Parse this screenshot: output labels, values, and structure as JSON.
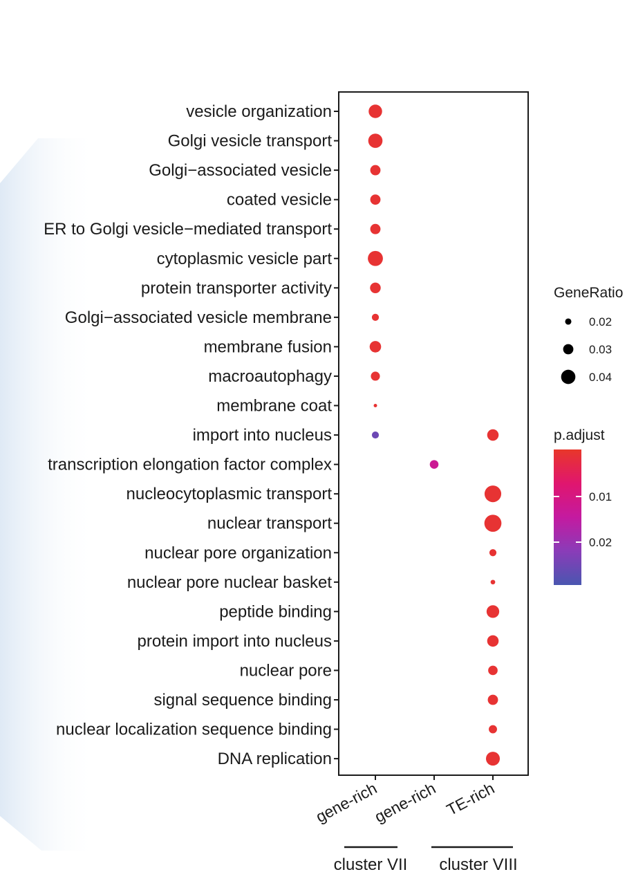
{
  "chart_data": {
    "type": "dotplot",
    "terms": [
      "vesicle organization",
      "Golgi vesicle transport",
      "Golgi−associated vesicle",
      "coated vesicle",
      "ER to Golgi vesicle−mediated transport",
      "cytoplasmic vesicle part",
      "protein transporter activity",
      "Golgi−associated vesicle membrane",
      "membrane fusion",
      "macroautophagy",
      "membrane coat",
      "import into nucleus",
      "transcription elongation factor complex",
      "nucleocytoplasmic transport",
      "nuclear transport",
      "nuclear pore organization",
      "nuclear pore nuclear basket",
      "peptide binding",
      "protein import into nucleus",
      "nuclear pore",
      "signal sequence binding",
      "nuclear localization sequence binding",
      "DNA replication"
    ],
    "categories": [
      "gene-rich",
      "gene-rich",
      "TE-rich"
    ],
    "groups": [
      {
        "label": "cluster VII",
        "categories": [
          0
        ]
      },
      {
        "label": "cluster VIII",
        "categories": [
          1,
          2
        ]
      }
    ],
    "points": [
      {
        "term": 0,
        "cat": 0,
        "gene_ratio": 0.038,
        "p_adjust": 0.001
      },
      {
        "term": 1,
        "cat": 0,
        "gene_ratio": 0.04,
        "p_adjust": 0.001
      },
      {
        "term": 2,
        "cat": 0,
        "gene_ratio": 0.03,
        "p_adjust": 0.001
      },
      {
        "term": 3,
        "cat": 0,
        "gene_ratio": 0.03,
        "p_adjust": 0.001
      },
      {
        "term": 4,
        "cat": 0,
        "gene_ratio": 0.03,
        "p_adjust": 0.001
      },
      {
        "term": 5,
        "cat": 0,
        "gene_ratio": 0.042,
        "p_adjust": 0.001
      },
      {
        "term": 6,
        "cat": 0,
        "gene_ratio": 0.031,
        "p_adjust": 0.001
      },
      {
        "term": 7,
        "cat": 0,
        "gene_ratio": 0.022,
        "p_adjust": 0.001
      },
      {
        "term": 8,
        "cat": 0,
        "gene_ratio": 0.033,
        "p_adjust": 0.001
      },
      {
        "term": 9,
        "cat": 0,
        "gene_ratio": 0.027,
        "p_adjust": 0.001
      },
      {
        "term": 10,
        "cat": 0,
        "gene_ratio": 0.013,
        "p_adjust": 0.001
      },
      {
        "term": 11,
        "cat": 0,
        "gene_ratio": 0.022,
        "p_adjust": 0.026
      },
      {
        "term": 11,
        "cat": 2,
        "gene_ratio": 0.033,
        "p_adjust": 0.001
      },
      {
        "term": 12,
        "cat": 1,
        "gene_ratio": 0.026,
        "p_adjust": 0.013
      },
      {
        "term": 13,
        "cat": 2,
        "gene_ratio": 0.046,
        "p_adjust": 0.001
      },
      {
        "term": 14,
        "cat": 2,
        "gene_ratio": 0.047,
        "p_adjust": 0.001
      },
      {
        "term": 15,
        "cat": 2,
        "gene_ratio": 0.022,
        "p_adjust": 0.001
      },
      {
        "term": 16,
        "cat": 2,
        "gene_ratio": 0.016,
        "p_adjust": 0.001
      },
      {
        "term": 17,
        "cat": 2,
        "gene_ratio": 0.036,
        "p_adjust": 0.001
      },
      {
        "term": 18,
        "cat": 2,
        "gene_ratio": 0.033,
        "p_adjust": 0.001
      },
      {
        "term": 19,
        "cat": 2,
        "gene_ratio": 0.028,
        "p_adjust": 0.001
      },
      {
        "term": 20,
        "cat": 2,
        "gene_ratio": 0.03,
        "p_adjust": 0.001
      },
      {
        "term": 21,
        "cat": 2,
        "gene_ratio": 0.025,
        "p_adjust": 0.001
      },
      {
        "term": 22,
        "cat": 2,
        "gene_ratio": 0.039,
        "p_adjust": 0.001
      }
    ],
    "size_legend": {
      "title": "GeneRatio",
      "values": [
        0.02,
        0.03,
        0.04
      ],
      "labels": [
        "0.02",
        "0.03",
        "0.04"
      ]
    },
    "color_legend": {
      "title": "p.adjust",
      "range": [
        0.0,
        0.03
      ],
      "ticks": [
        0.01,
        0.02
      ],
      "tick_labels": [
        "0.01",
        "0.02"
      ],
      "colors": [
        "#e8372a",
        "#e0166e",
        "#c41aa0",
        "#8a3cb8",
        "#4a56b0"
      ]
    },
    "grid": false
  }
}
